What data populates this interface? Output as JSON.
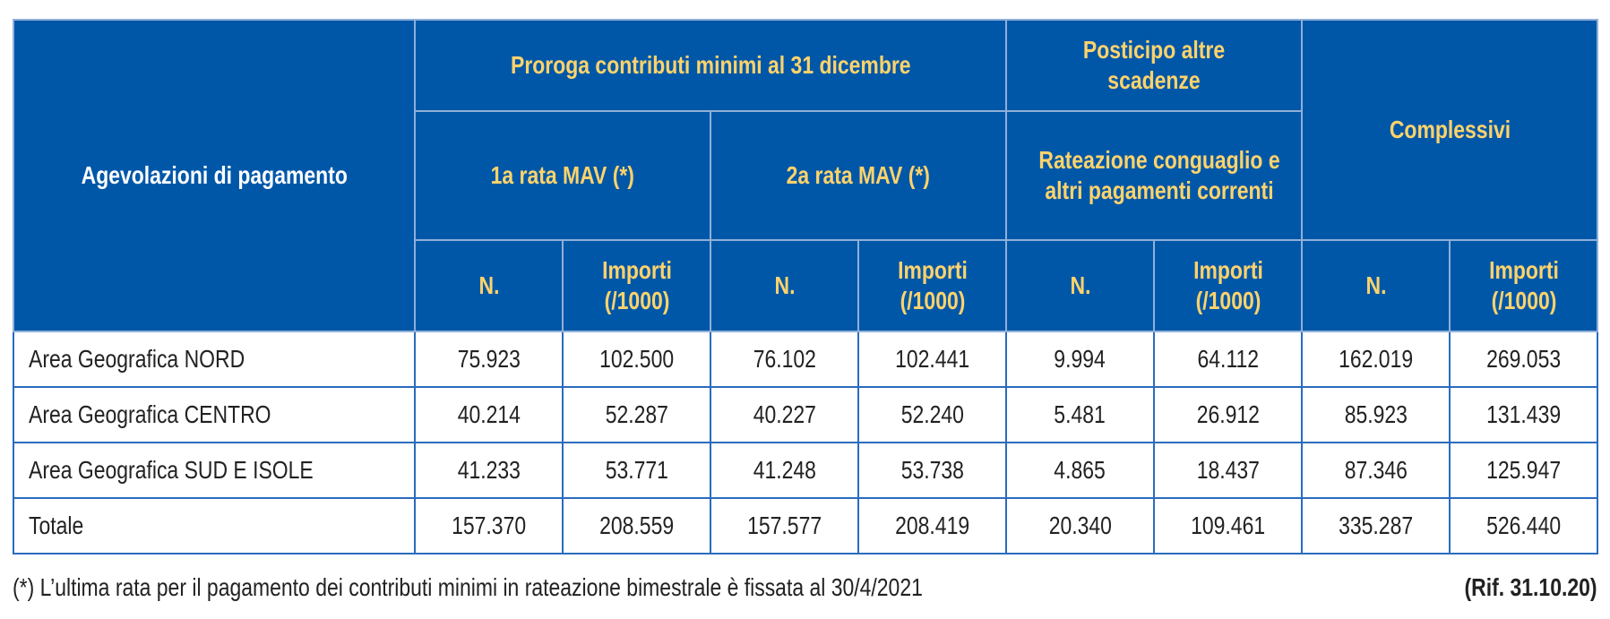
{
  "header": {
    "row_label": "Agevolazioni di pagamento",
    "group1": "Proroga contributi minimi al 31 dicembre",
    "group2": "Posticipo altre scadenze",
    "group3": "Complessivi",
    "sub1": "1a rata MAV (*)",
    "sub2": "2a rata MAV (*)",
    "sub3": "Rateazione conguaglio e altri pagamenti correnti",
    "col_n": "N.",
    "col_importi": "Importi (/1000)"
  },
  "rows": [
    {
      "label": "Area Geografica NORD",
      "values": [
        "75.923",
        "102.500",
        "76.102",
        "102.441",
        "9.994",
        "64.112",
        "162.019",
        "269.053"
      ]
    },
    {
      "label": "Area Geografica CENTRO",
      "values": [
        "40.214",
        "52.287",
        "40.227",
        "52.240",
        "5.481",
        "26.912",
        "85.923",
        "131.439"
      ]
    },
    {
      "label": "Area Geografica SUD E ISOLE",
      "values": [
        "41.233",
        "53.771",
        "41.248",
        "53.738",
        "4.865",
        "18.437",
        "87.346",
        "125.947"
      ]
    },
    {
      "label": "Totale",
      "values": [
        "157.370",
        "208.559",
        "157.577",
        "208.419",
        "20.340",
        "109.461",
        "335.287",
        "526.440"
      ]
    }
  ],
  "footnote": "(*) L’ultima rata per il pagamento dei contributi minimi in rateazione bimestrale è fissata al 30/4/2021",
  "reference": "(Rif. 31.10.20)",
  "colors": {
    "header_bg": "#0057A8",
    "header_text": "#FFD36B",
    "border": "#2A6BBF"
  }
}
